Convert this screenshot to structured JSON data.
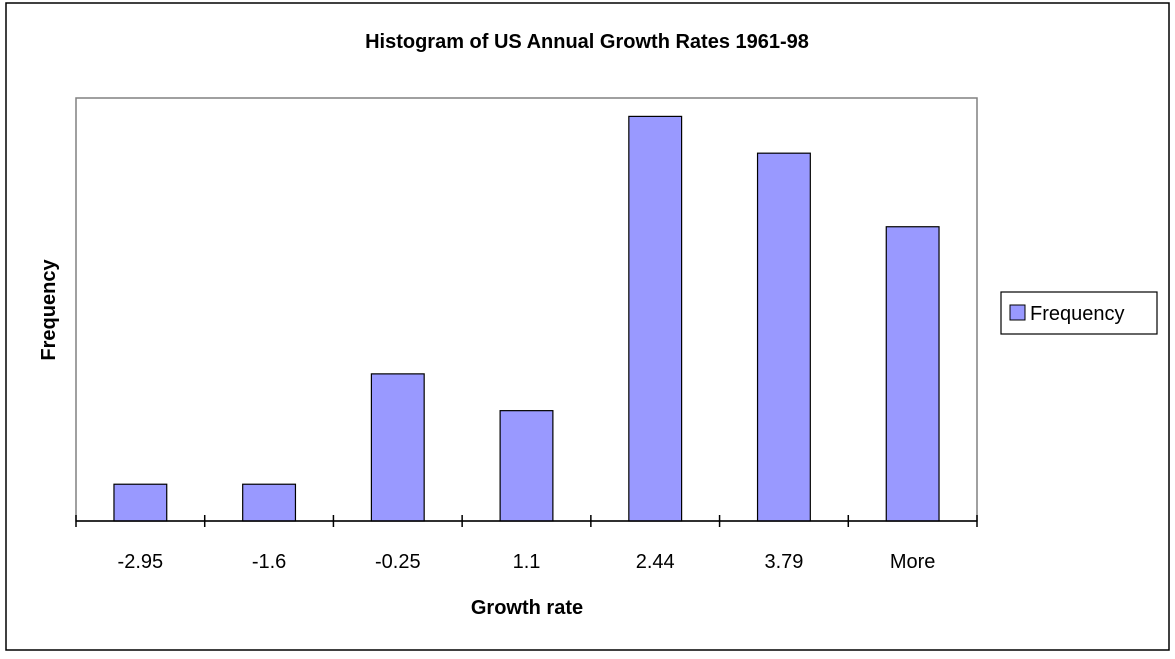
{
  "chart_data": {
    "type": "bar",
    "title": "Histogram of US Annual Growth Rates 1961-98",
    "xlabel": "Growth rate",
    "ylabel": "Frequency",
    "categories": [
      "-2.95",
      "-1.6",
      "-0.25",
      "1.1",
      "2.44",
      "3.79",
      "More"
    ],
    "series": [
      {
        "name": "Frequency",
        "values": [
          1,
          1,
          4,
          3,
          11,
          10,
          8
        ]
      }
    ],
    "ylim": [
      0,
      11.5
    ],
    "grid": false,
    "legend": {
      "position": "right",
      "entries": [
        "Frequency"
      ]
    },
    "colors": {
      "bar": "#9999ff",
      "bar_stroke": "#000000",
      "plot_border": "#808080",
      "frame_border": "#000000"
    }
  }
}
